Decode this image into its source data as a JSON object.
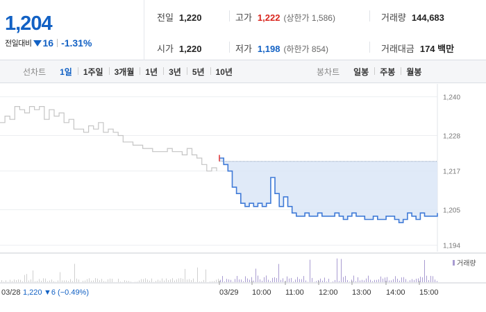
{
  "header": {
    "price": "1,204",
    "change_label": "전일대비",
    "change_value": "16",
    "change_pct": "-1.31%",
    "prev_close_label": "전일",
    "prev_close": "1,220",
    "open_label": "시가",
    "open": "1,220",
    "high_label": "고가",
    "high": "1,222",
    "upper_limit": "(상한가 1,586)",
    "low_label": "저가",
    "low": "1,198",
    "lower_limit": "(하한가 854)",
    "volume_label": "거래량",
    "volume": "144,683",
    "amount_label": "거래대금",
    "amount": "174 백만"
  },
  "period_bar": {
    "line_label": "선차트",
    "line_tabs": [
      "1일",
      "1주일",
      "3개월",
      "1년",
      "3년",
      "5년",
      "10년"
    ],
    "active_line_tab": "1일",
    "candle_label": "봉차트",
    "candle_tabs": [
      "일봉",
      "주봉",
      "월봉"
    ]
  },
  "chart": {
    "legend": "거래량",
    "prev_day_info": "03/28",
    "prev_day_close": "1,220",
    "prev_day_change": "▼6 (−0.49%)",
    "colors": {
      "prev": "#c4c4c4",
      "today": "#3f7ad7",
      "fill": "#dbe6f7",
      "up": "#e33b3b",
      "volume": "#a89bd1"
    }
  },
  "chart_data": {
    "type": "line",
    "y_ticks": [
      "1,240",
      "1,228",
      "1,217",
      "1,205",
      "1,194"
    ],
    "ylim": [
      1192,
      1244
    ],
    "x_ticks": [
      "03/29",
      "10:00",
      "11:00",
      "12:00",
      "13:00",
      "14:00",
      "15:00"
    ],
    "reference_price": 1220,
    "prev_day_series": [
      1232,
      1234,
      1233,
      1237,
      1236,
      1235,
      1237,
      1236,
      1237,
      1233,
      1236,
      1234,
      1235,
      1232,
      1233,
      1230,
      1230,
      1229,
      1231,
      1230,
      1232,
      1229,
      1230,
      1229,
      1228,
      1226,
      1226,
      1225,
      1225,
      1224,
      1224,
      1223,
      1223,
      1223,
      1224,
      1223,
      1223,
      1222,
      1224,
      1222,
      1221,
      1219,
      1217,
      1218,
      1217
    ],
    "today_series": [
      1221,
      1219,
      1217,
      1212,
      1210,
      1207,
      1206,
      1207,
      1206,
      1207,
      1206,
      1207,
      1215,
      1210,
      1206,
      1209,
      1206,
      1204,
      1203,
      1203,
      1204,
      1203,
      1203,
      1204,
      1203,
      1203,
      1203,
      1204,
      1203,
      1202,
      1203,
      1204,
      1203,
      1203,
      1202,
      1202,
      1203,
      1202,
      1202,
      1203,
      1203,
      1202,
      1201,
      1202,
      1204,
      1203,
      1202,
      1204,
      1203,
      1203,
      1203,
      1204
    ]
  }
}
